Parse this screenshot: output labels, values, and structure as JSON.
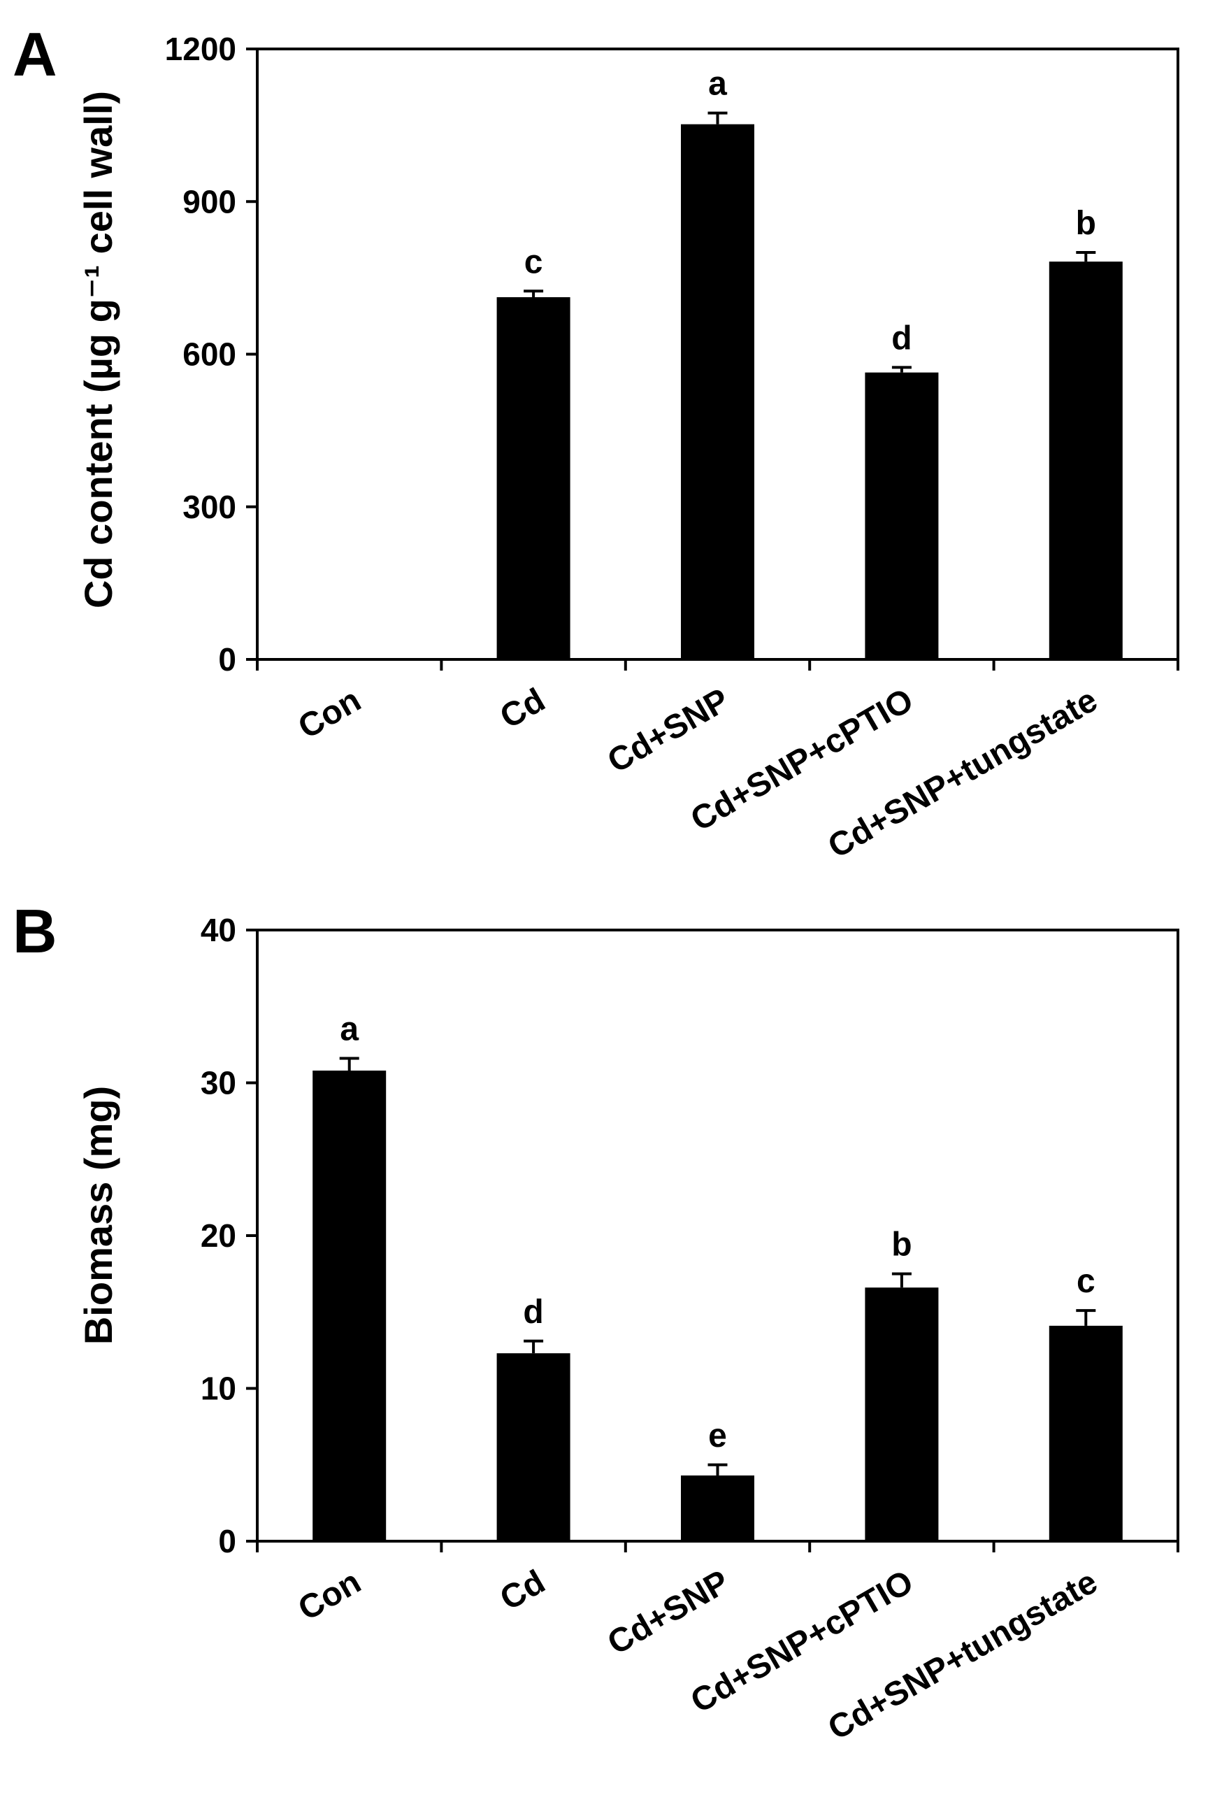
{
  "chart_data": [
    {
      "type": "bar",
      "panel": "A",
      "title": "",
      "xlabel": "",
      "ylabel": "Cd content (µg g⁻¹ cell wall)",
      "ylim": [
        0,
        1200
      ],
      "yticks": [
        0,
        300,
        600,
        900,
        1200
      ],
      "ytick_labels": [
        "0",
        "300",
        "600",
        "900",
        "1200"
      ],
      "categories": [
        "Con",
        "Cd",
        "Cd+SNP",
        "Cd+SNP+cPTIO",
        "Cd+SNP+tungstate"
      ],
      "values": [
        0,
        712,
        1052,
        564,
        782
      ],
      "errors": [
        0,
        12,
        22,
        10,
        18
      ],
      "significance": [
        "",
        "c",
        "a",
        "d",
        "b"
      ],
      "grid": false,
      "bar_color": "#000000"
    },
    {
      "type": "bar",
      "panel": "B",
      "title": "",
      "xlabel": "",
      "ylabel": "Biomass (mg)",
      "ylim": [
        0,
        40
      ],
      "yticks": [
        0,
        10,
        20,
        30,
        40
      ],
      "ytick_labels": [
        "0",
        "10",
        "20",
        "30",
        "40"
      ],
      "categories": [
        "Con",
        "Cd",
        "Cd+SNP",
        "Cd+SNP+cPTIO",
        "Cd+SNP+tungstate"
      ],
      "values": [
        30.8,
        12.3,
        4.3,
        16.6,
        14.1
      ],
      "errors": [
        0.8,
        0.8,
        0.7,
        0.9,
        1.0
      ],
      "significance": [
        "a",
        "d",
        "e",
        "b",
        "c"
      ],
      "grid": false,
      "bar_color": "#000000"
    }
  ]
}
